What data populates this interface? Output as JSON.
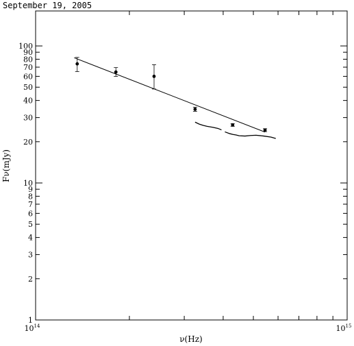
{
  "chart_data": {
    "type": "scatter",
    "title": "September 19, 2005",
    "xlabel": "ν(Hz)",
    "ylabel": "Fν(mJy)",
    "x_scale": "log",
    "y_scale": "log",
    "xlim": [
      100000000000000.0,
      1000000000000000.0
    ],
    "ylim": [
      1,
      180
    ],
    "grid": false,
    "x_ticks": [
      {
        "value": 100000000000000.0,
        "label": "10",
        "sup": "14"
      },
      {
        "value": 1000000000000000.0,
        "label": "10",
        "sup": "15"
      }
    ],
    "y_ticks": [
      {
        "value": 1,
        "label": "1"
      },
      {
        "value": 2,
        "label": "2"
      },
      {
        "value": 3,
        "label": "3"
      },
      {
        "value": 4,
        "label": "4"
      },
      {
        "value": 5,
        "label": "5"
      },
      {
        "value": 6,
        "label": "6"
      },
      {
        "value": 7,
        "label": "7"
      },
      {
        "value": 8,
        "label": "8"
      },
      {
        "value": 9,
        "label": "9"
      },
      {
        "value": 10,
        "label": "10"
      },
      {
        "value": 20,
        "label": "20"
      },
      {
        "value": 30,
        "label": "30"
      },
      {
        "value": 40,
        "label": "40"
      },
      {
        "value": 50,
        "label": "50"
      },
      {
        "value": 60,
        "label": "60"
      },
      {
        "value": 70,
        "label": "70"
      },
      {
        "value": 80,
        "label": "80"
      },
      {
        "value": 90,
        "label": "90"
      },
      {
        "value": 100,
        "label": "100"
      }
    ],
    "series": [
      {
        "kind": "points",
        "points": [
          {
            "x": 136000000000000.0,
            "y": 74.0,
            "err_low": 9.0,
            "err_high": 8.5
          },
          {
            "x": 181000000000000.0,
            "y": 64.5,
            "err_low": 4.5,
            "err_high": 5.0
          },
          {
            "x": 240000000000000.0,
            "y": 60.0,
            "err_low": 11.5,
            "err_high": 13.0
          },
          {
            "x": 325000000000000.0,
            "y": 34.5,
            "err_low": 1.2,
            "err_high": 1.2
          },
          {
            "x": 429000000000000.0,
            "y": 26.5,
            "err_low": 0.6,
            "err_high": 0.6
          },
          {
            "x": 545000000000000.0,
            "y": 24.3,
            "err_low": 0.6,
            "err_high": 0.6
          }
        ]
      },
      {
        "kind": "line",
        "points": [
          {
            "x": 133000000000000.0,
            "y": 82.0
          },
          {
            "x": 545000000000000.0,
            "y": 23.5
          }
        ]
      },
      {
        "kind": "spectrum",
        "segments": [
          [
            {
              "x": 325000000000000.0,
              "y": 27.8
            },
            {
              "x": 335000000000000.0,
              "y": 26.9
            },
            {
              "x": 345000000000000.0,
              "y": 26.3
            },
            {
              "x": 355000000000000.0,
              "y": 25.9
            },
            {
              "x": 370000000000000.0,
              "y": 25.5
            },
            {
              "x": 385000000000000.0,
              "y": 25.0
            },
            {
              "x": 395000000000000.0,
              "y": 24.4
            }
          ],
          [
            {
              "x": 405000000000000.0,
              "y": 23.6
            },
            {
              "x": 420000000000000.0,
              "y": 22.9
            },
            {
              "x": 430000000000000.0,
              "y": 22.6
            },
            {
              "x": 440000000000000.0,
              "y": 22.4
            },
            {
              "x": 450000000000000.0,
              "y": 22.1
            },
            {
              "x": 470000000000000.0,
              "y": 22.0
            },
            {
              "x": 490000000000000.0,
              "y": 22.2
            },
            {
              "x": 510000000000000.0,
              "y": 22.3
            },
            {
              "x": 540000000000000.0,
              "y": 22.0
            },
            {
              "x": 570000000000000.0,
              "y": 21.6
            },
            {
              "x": 590000000000000.0,
              "y": 21.1
            }
          ]
        ]
      }
    ]
  }
}
